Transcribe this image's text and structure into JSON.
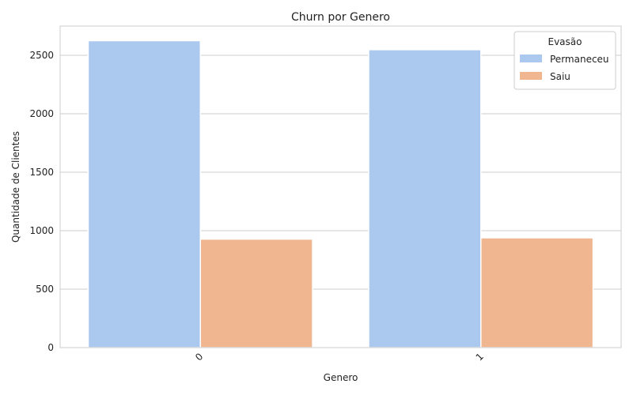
{
  "chart_data": {
    "type": "bar",
    "title": "Churn por Genero",
    "xlabel": "Genero",
    "ylabel": "Quantidade de Clientes",
    "categories": [
      "0",
      "1"
    ],
    "series": [
      {
        "name": "Permaneceu",
        "values": [
          2625,
          2548
        ],
        "color": "#abc9ee"
      },
      {
        "name": "Saiu",
        "values": [
          928,
          939
        ],
        "color": "#f0b690"
      }
    ],
    "ylim": [
      0,
      2750
    ],
    "yticks": [
      0,
      500,
      1000,
      1500,
      2000,
      2500
    ],
    "grid": true,
    "legend": {
      "title": "Evasão",
      "placement": "top-right"
    }
  }
}
